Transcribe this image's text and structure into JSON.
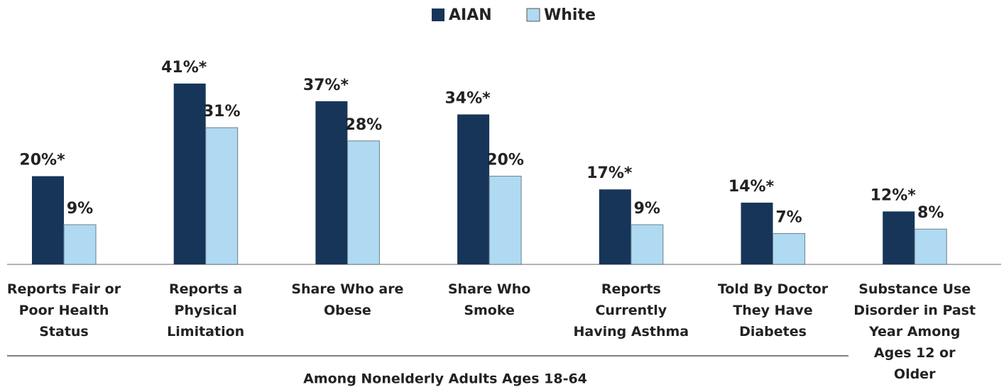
{
  "chart_data": {
    "type": "bar",
    "categories": [
      "Reports Fair or\nPoor Health\nStatus",
      "Reports a\nPhysical\nLimitation",
      "Share Who are\nObese",
      "Share Who\nSmoke",
      "Reports\nCurrently\nHaving Asthma",
      "Told By Doctor\nThey Have\nDiabetes",
      "Substance Use\nDisorder in Past\nYear Among\nAges 12 or\nOlder"
    ],
    "series": [
      {
        "name": "AIAN",
        "color": "#173559",
        "values": [
          20,
          41,
          37,
          34,
          17,
          14,
          12
        ],
        "value_labels": [
          "20%*",
          "41%*",
          "37%*",
          "34%*",
          "17%*",
          "14%*",
          "12%*"
        ]
      },
      {
        "name": "White",
        "color": "#b0daf1",
        "values": [
          9,
          31,
          28,
          20,
          9,
          7,
          8
        ],
        "value_labels": [
          "9%",
          "31%",
          "28%",
          "20%",
          "9%",
          "7%",
          "8%"
        ]
      }
    ],
    "ylim": [
      0,
      45
    ],
    "annotation": "Among Nonelderly Adults Ages 18-64",
    "legend": "top"
  }
}
